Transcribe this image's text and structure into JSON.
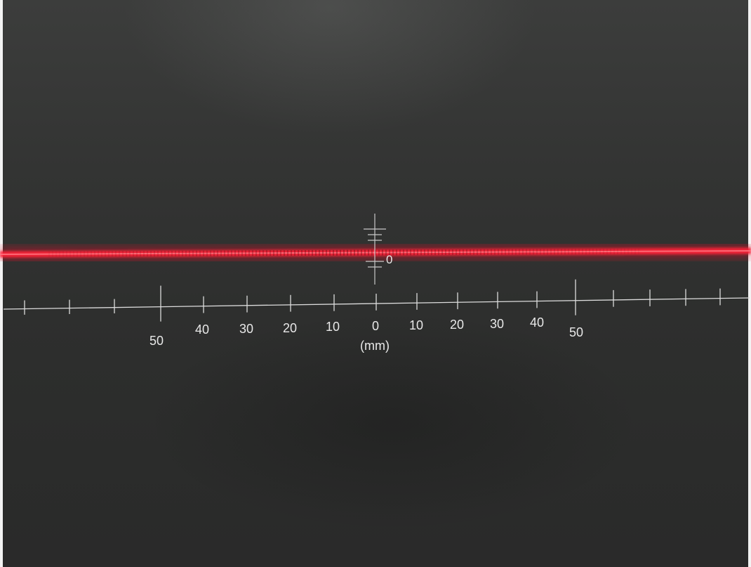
{
  "scene": {
    "background_color": "#2f302f",
    "laser_color": "#ff2a3a",
    "scale_color": "#e6e6e6"
  },
  "reticle": {
    "zero_label": "0"
  },
  "scale": {
    "left_labels": [
      "50",
      "40",
      "30",
      "20",
      "10"
    ],
    "center_label": "0",
    "right_labels": [
      "10",
      "20",
      "30",
      "40",
      "50"
    ],
    "unit": "(mm)"
  }
}
